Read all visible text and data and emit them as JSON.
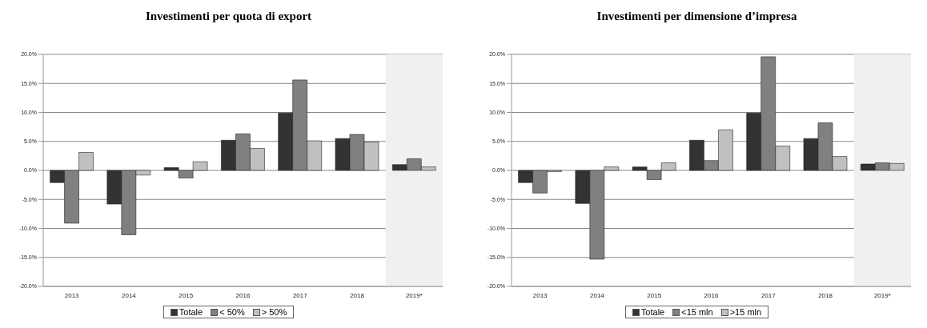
{
  "chart_data": [
    {
      "type": "bar",
      "title": "Investimenti per quota di export",
      "categories": [
        "2013",
        "2014",
        "2015",
        "2016",
        "2017",
        "2018",
        "2019*"
      ],
      "series": [
        {
          "name": "Totale",
          "color": "#333333",
          "values": [
            -2.1,
            -5.8,
            0.5,
            5.2,
            9.9,
            5.5,
            1.0
          ]
        },
        {
          "name": "< 50%",
          "color": "#808080",
          "values": [
            -9.1,
            -11.1,
            -1.3,
            6.3,
            15.6,
            6.2,
            2.0
          ]
        },
        {
          "name": "> 50%",
          "color": "#c0c0c0",
          "values": [
            3.1,
            -0.8,
            1.5,
            3.8,
            5.1,
            4.9,
            0.6
          ]
        }
      ],
      "ylim": [
        -20,
        20
      ],
      "yticks": [
        {
          "value": -20,
          "label": "-20.0%"
        },
        {
          "value": -15,
          "label": "-15.0%"
        },
        {
          "value": -10,
          "label": "-10.0%"
        },
        {
          "value": -5,
          "label": "-5.0%"
        },
        {
          "value": 0,
          "label": "0.0%"
        },
        {
          "value": 5,
          "label": "5.0%"
        },
        {
          "value": 10,
          "label": "10.0%"
        },
        {
          "value": 15,
          "label": "15.0%"
        },
        {
          "value": 20,
          "label": "20.0%"
        }
      ],
      "bands": [
        {
          "axis": "x",
          "from": "2019*",
          "to": "2019*",
          "color": "#f0f0f0"
        }
      ],
      "grid": "y",
      "legend": "bottom"
    },
    {
      "type": "bar",
      "title": "Investimenti per dimensione d’impresa",
      "categories": [
        "2013",
        "2014",
        "2015",
        "2016",
        "2017",
        "2018",
        "2019*"
      ],
      "series": [
        {
          "name": "Totale",
          "color": "#333333",
          "values": [
            -2.1,
            -5.7,
            0.6,
            5.2,
            9.9,
            5.5,
            1.1
          ]
        },
        {
          "name": "<15 mln",
          "color": "#808080",
          "values": [
            -3.9,
            -15.3,
            -1.6,
            1.7,
            19.6,
            8.2,
            1.3
          ]
        },
        {
          "name": ">15 mln",
          "color": "#c0c0c0",
          "values": [
            -0.2,
            0.6,
            1.3,
            7.0,
            4.2,
            2.4,
            1.2
          ]
        }
      ],
      "ylim": [
        -20,
        20
      ],
      "yticks": [
        {
          "value": -20,
          "label": "-20.0%"
        },
        {
          "value": -15,
          "label": "-15.0%"
        },
        {
          "value": -10,
          "label": "-10.0%"
        },
        {
          "value": -5,
          "label": "-5.0%"
        },
        {
          "value": 0,
          "label": "0.0%"
        },
        {
          "value": 5,
          "label": "5.0%"
        },
        {
          "value": 10,
          "label": "10.0%"
        },
        {
          "value": 15,
          "label": "15.0%"
        },
        {
          "value": 20,
          "label": "20.0%"
        }
      ],
      "bands": [
        {
          "axis": "x",
          "from": "2019*",
          "to": "2019*",
          "color": "#f0f0f0"
        }
      ],
      "grid": "y",
      "legend": "bottom"
    }
  ]
}
